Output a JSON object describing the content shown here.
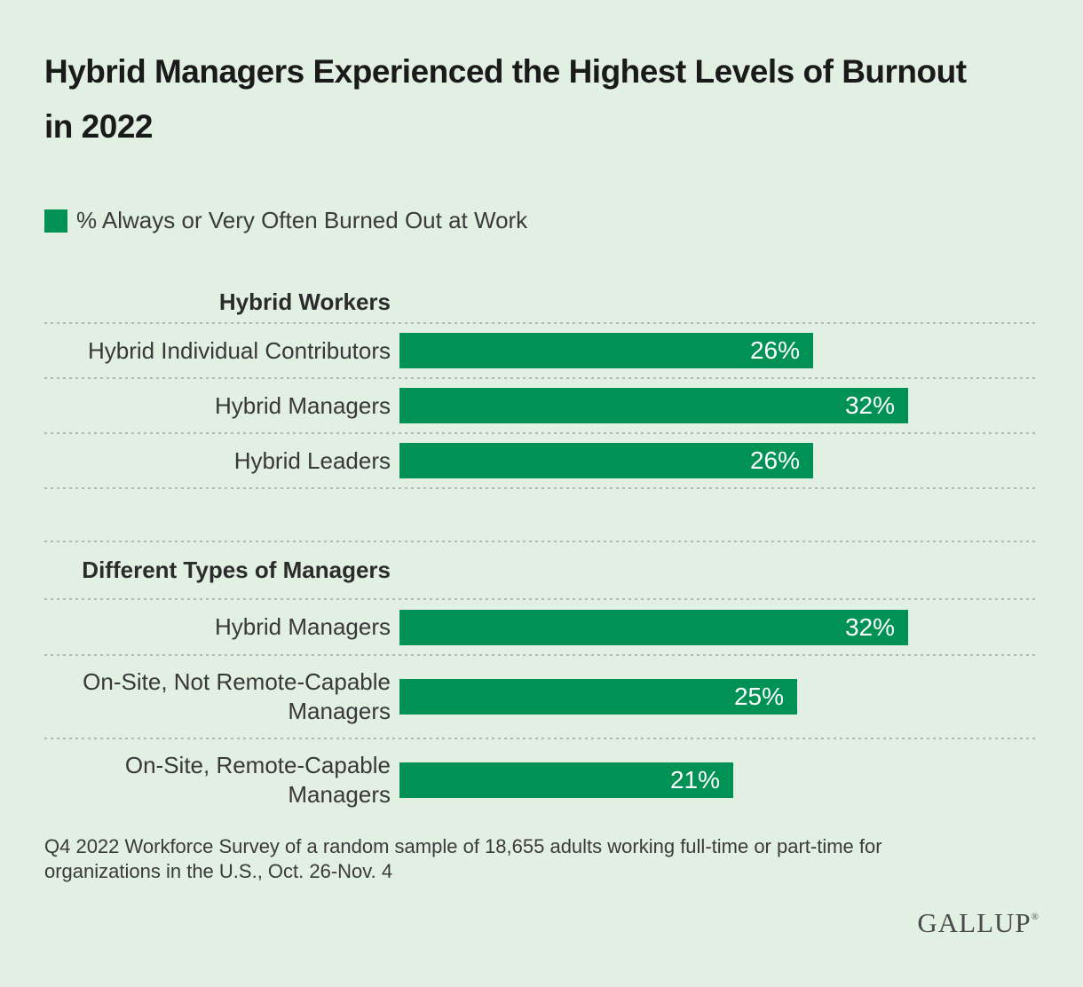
{
  "title": "Hybrid Managers Experienced the Highest Levels of Burnout in 2022",
  "legend": {
    "label": "% Always or Very Often Burned Out at Work"
  },
  "colors": {
    "background": "#e2efe3",
    "bar": "#009254",
    "separator_dots": "#b2bab2",
    "title_text": "#1a1a1a",
    "label_text": "#383838",
    "bar_value_text": "#ffffff"
  },
  "chart_data": {
    "type": "bar",
    "orientation": "horizontal",
    "unit": "%",
    "xlim": [
      0,
      40
    ],
    "grid": "dotted row separators",
    "legend_position": "top-left",
    "title": "Hybrid Managers Experienced the Highest Levels of Burnout in 2022",
    "series_label": "% Always or Very Often Burned Out at Work",
    "groups": [
      {
        "header": "Hybrid Workers",
        "rows": [
          {
            "label": "Hybrid Individual Contributors",
            "value": 26,
            "value_label": "26%"
          },
          {
            "label": "Hybrid Managers",
            "value": 32,
            "value_label": "32%"
          },
          {
            "label": "Hybrid Leaders",
            "value": 26,
            "value_label": "26%"
          }
        ]
      },
      {
        "header": "Different Types of Managers",
        "rows": [
          {
            "label": "Hybrid Managers",
            "value": 32,
            "value_label": "32%"
          },
          {
            "label": "On-Site, Not Remote-Capable Managers",
            "value": 25,
            "value_label": "25%"
          },
          {
            "label": "On-Site, Remote-Capable Managers",
            "value": 21,
            "value_label": "21%"
          }
        ]
      }
    ]
  },
  "footnote": "Q4 2022 Workforce Survey of a random sample of 18,655 adults working full-time or part-time for organizations in the U.S., Oct. 26-Nov. 4",
  "logo": {
    "text": "GALLUP",
    "registered_mark": "®"
  }
}
